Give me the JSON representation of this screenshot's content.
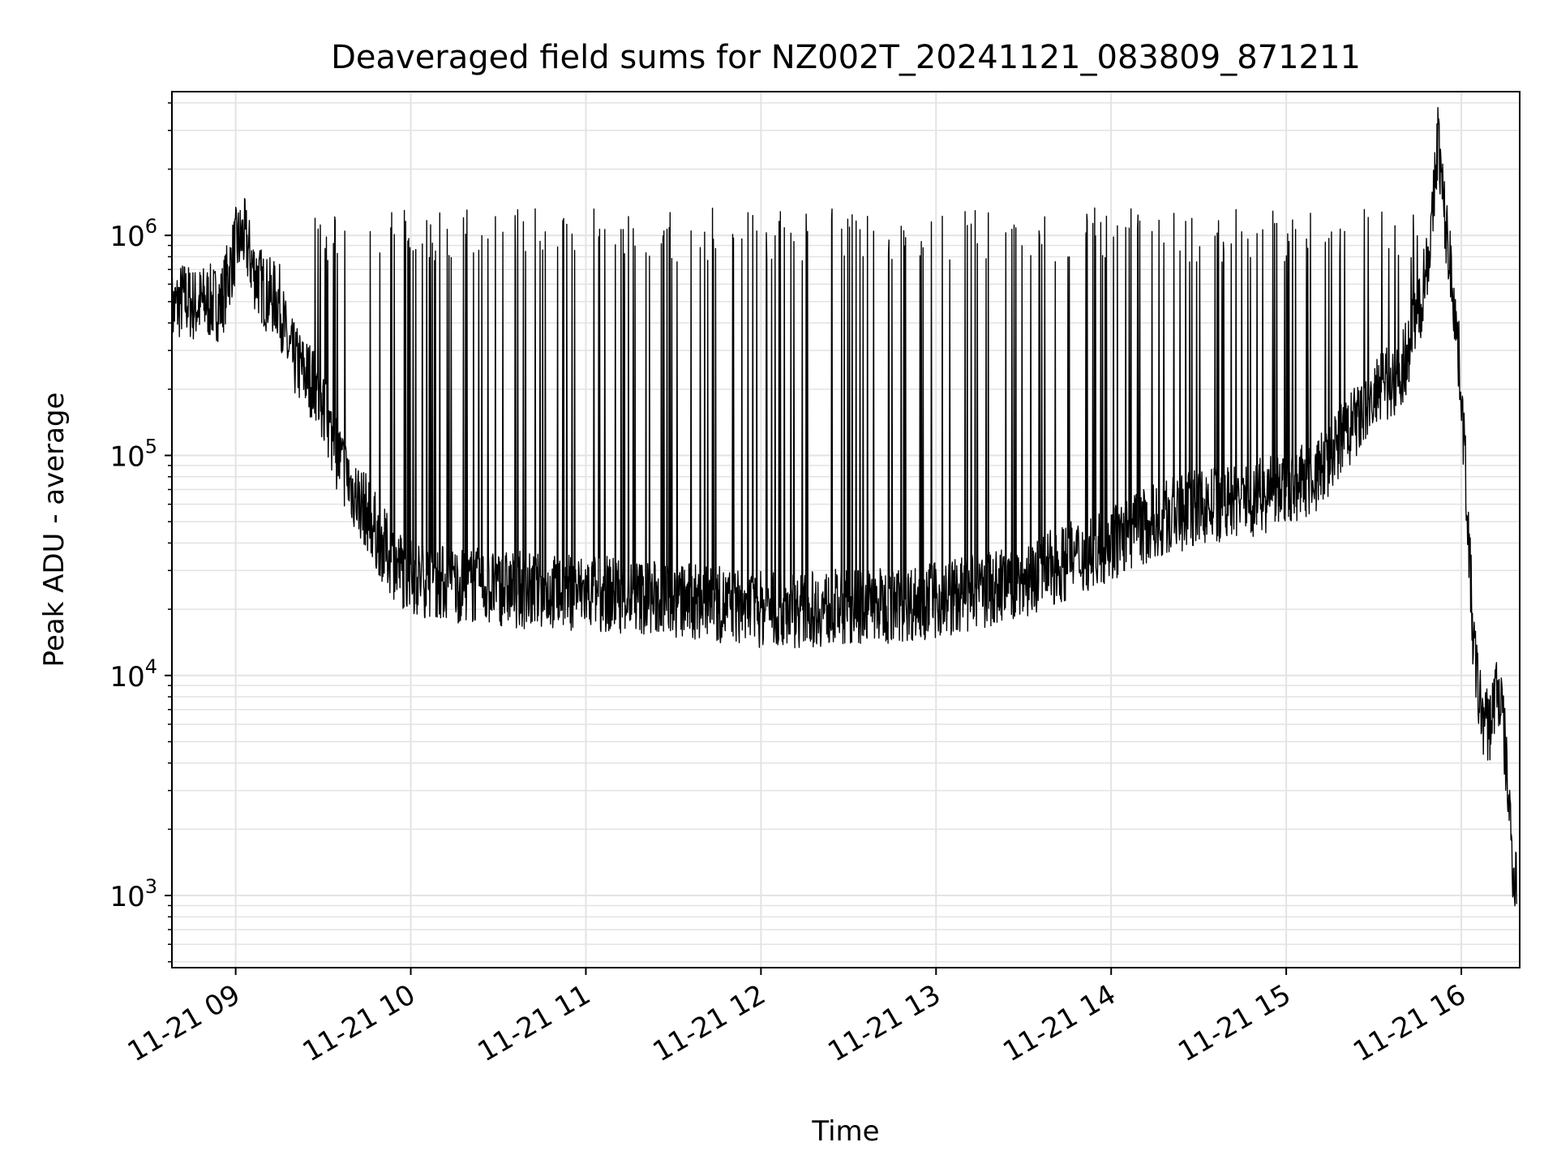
{
  "chart_data": {
    "type": "line",
    "title": "Deaveraged field sums for NZ002T_20241121_083809_871211",
    "xlabel": "Time",
    "ylabel": "Peak ADU - average",
    "y_scale": "log",
    "ylim": [
      470,
      4500000
    ],
    "xlim": [
      "2024-11-21 08:38:09",
      "2024-11-21 16:20:00"
    ],
    "grid": true,
    "line_color": "#000000",
    "grid_color": "#e3e3e3",
    "x_ticks": [
      {
        "t": "2024-11-21 09:00",
        "label": "11-21 09"
      },
      {
        "t": "2024-11-21 10:00",
        "label": "11-21 10"
      },
      {
        "t": "2024-11-21 11:00",
        "label": "11-21 11"
      },
      {
        "t": "2024-11-21 12:00",
        "label": "11-21 12"
      },
      {
        "t": "2024-11-21 13:00",
        "label": "11-21 13"
      },
      {
        "t": "2024-11-21 14:00",
        "label": "11-21 14"
      },
      {
        "t": "2024-11-21 15:00",
        "label": "11-21 15"
      },
      {
        "t": "2024-11-21 16:00",
        "label": "11-21 16"
      }
    ],
    "y_ticks": [
      {
        "value": 1000,
        "base": "10",
        "exp": "3"
      },
      {
        "value": 10000,
        "base": "10",
        "exp": "4"
      },
      {
        "value": 100000,
        "base": "10",
        "exp": "5"
      },
      {
        "value": 1000000,
        "base": "10",
        "exp": "6"
      }
    ],
    "series": [
      {
        "points": [
          [
            "2024-11-21 08:38",
            450000
          ],
          [
            "2024-11-21 08:42",
            520000
          ],
          [
            "2024-11-21 08:46",
            480000
          ],
          [
            "2024-11-21 08:50",
            500000
          ],
          [
            "2024-11-21 08:55",
            490000
          ],
          [
            "2024-11-21 08:58",
            700000
          ],
          [
            "2024-11-21 09:00",
            900000
          ],
          [
            "2024-11-21 09:03",
            1000000
          ],
          [
            "2024-11-21 09:06",
            700000
          ],
          [
            "2024-11-21 09:10",
            550000
          ],
          [
            "2024-11-21 09:15",
            500000
          ],
          [
            "2024-11-21 09:18",
            300000
          ],
          [
            "2024-11-21 09:22",
            250000
          ],
          [
            "2024-11-21 09:26",
            220000
          ],
          [
            "2024-11-21 09:30",
            160000
          ],
          [
            "2024-11-21 09:35",
            100000
          ],
          [
            "2024-11-21 09:40",
            70000
          ],
          [
            "2024-11-21 09:45",
            55000
          ],
          [
            "2024-11-21 09:50",
            40000
          ],
          [
            "2024-11-21 09:55",
            32000
          ],
          [
            "2024-11-21 10:00",
            28000
          ],
          [
            "2024-11-21 10:15",
            26000
          ],
          [
            "2024-11-21 10:30",
            25000
          ],
          [
            "2024-11-21 10:45",
            24000
          ],
          [
            "2024-11-21 11:00",
            24000
          ],
          [
            "2024-11-21 11:15",
            23000
          ],
          [
            "2024-11-21 11:30",
            22000
          ],
          [
            "2024-11-21 11:45",
            21000
          ],
          [
            "2024-11-21 12:00",
            20000
          ],
          [
            "2024-11-21 12:15",
            20000
          ],
          [
            "2024-11-21 12:30",
            20500
          ],
          [
            "2024-11-21 12:45",
            21000
          ],
          [
            "2024-11-21 13:00",
            22000
          ],
          [
            "2024-11-21 13:15",
            24000
          ],
          [
            "2024-11-21 13:30",
            27000
          ],
          [
            "2024-11-21 13:45",
            33000
          ],
          [
            "2024-11-21 14:00",
            40000
          ],
          [
            "2024-11-21 14:15",
            50000
          ],
          [
            "2024-11-21 14:30",
            58000
          ],
          [
            "2024-11-21 14:45",
            62000
          ],
          [
            "2024-11-21 15:00",
            70000
          ],
          [
            "2024-11-21 15:10",
            80000
          ],
          [
            "2024-11-21 15:20",
            120000
          ],
          [
            "2024-11-21 15:30",
            180000
          ],
          [
            "2024-11-21 15:40",
            250000
          ],
          [
            "2024-11-21 15:46",
            500000
          ],
          [
            "2024-11-21 15:50",
            1100000
          ],
          [
            "2024-11-21 15:52",
            2900000
          ],
          [
            "2024-11-21 15:54",
            1300000
          ],
          [
            "2024-11-21 15:57",
            600000
          ],
          [
            "2024-11-21 16:00",
            200000
          ],
          [
            "2024-11-21 16:02",
            60000
          ],
          [
            "2024-11-21 16:04",
            15000
          ],
          [
            "2024-11-21 16:06",
            8000
          ],
          [
            "2024-11-21 16:08",
            6000
          ],
          [
            "2024-11-21 16:10",
            6000
          ],
          [
            "2024-11-21 16:12",
            9000
          ],
          [
            "2024-11-21 16:14",
            7000
          ],
          [
            "2024-11-21 16:16",
            3000
          ],
          [
            "2024-11-21 16:18",
            1200
          ],
          [
            "2024-11-21 16:19",
            1300
          ]
        ]
      }
    ]
  }
}
